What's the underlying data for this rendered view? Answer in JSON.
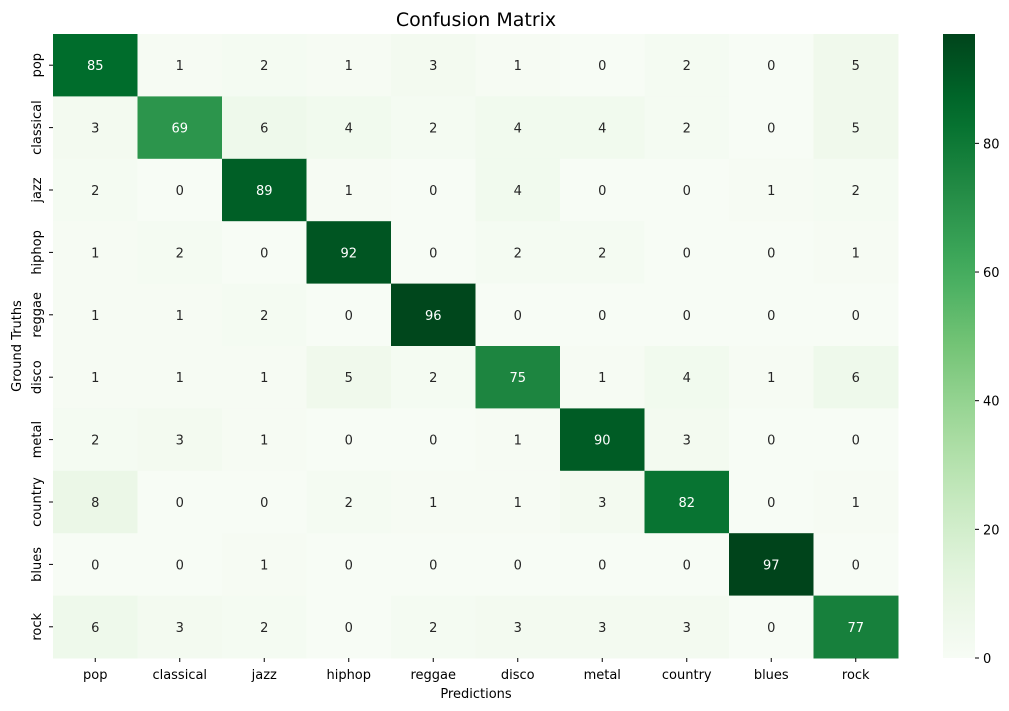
{
  "chart_data": {
    "type": "heatmap",
    "title": "Confusion Matrix",
    "xlabel": "Predictions",
    "ylabel": "Ground Truths",
    "x_categories": [
      "pop",
      "classical",
      "jazz",
      "hiphop",
      "reggae",
      "disco",
      "metal",
      "country",
      "blues",
      "rock"
    ],
    "y_categories": [
      "pop",
      "classical",
      "jazz",
      "hiphop",
      "reggae",
      "disco",
      "metal",
      "country",
      "blues",
      "rock"
    ],
    "values": [
      [
        85,
        1,
        2,
        1,
        3,
        1,
        0,
        2,
        0,
        5
      ],
      [
        3,
        69,
        6,
        4,
        2,
        4,
        4,
        2,
        0,
        5
      ],
      [
        2,
        0,
        89,
        1,
        0,
        4,
        0,
        0,
        1,
        2
      ],
      [
        1,
        2,
        0,
        92,
        0,
        2,
        2,
        0,
        0,
        1
      ],
      [
        1,
        1,
        2,
        0,
        96,
        0,
        0,
        0,
        0,
        0
      ],
      [
        1,
        1,
        1,
        5,
        2,
        75,
        1,
        4,
        1,
        6
      ],
      [
        2,
        3,
        1,
        0,
        0,
        1,
        90,
        3,
        0,
        0
      ],
      [
        8,
        0,
        0,
        2,
        1,
        1,
        3,
        82,
        0,
        1
      ],
      [
        0,
        0,
        1,
        0,
        0,
        0,
        0,
        0,
        97,
        0
      ],
      [
        6,
        3,
        2,
        0,
        2,
        3,
        3,
        3,
        0,
        77
      ]
    ],
    "colormap": "Greens",
    "colorbar": {
      "range": [
        0,
        97
      ],
      "ticks": [
        0,
        20,
        40,
        60,
        80
      ],
      "low_color": "#f7fcf5",
      "high_color": "#00441b"
    }
  }
}
